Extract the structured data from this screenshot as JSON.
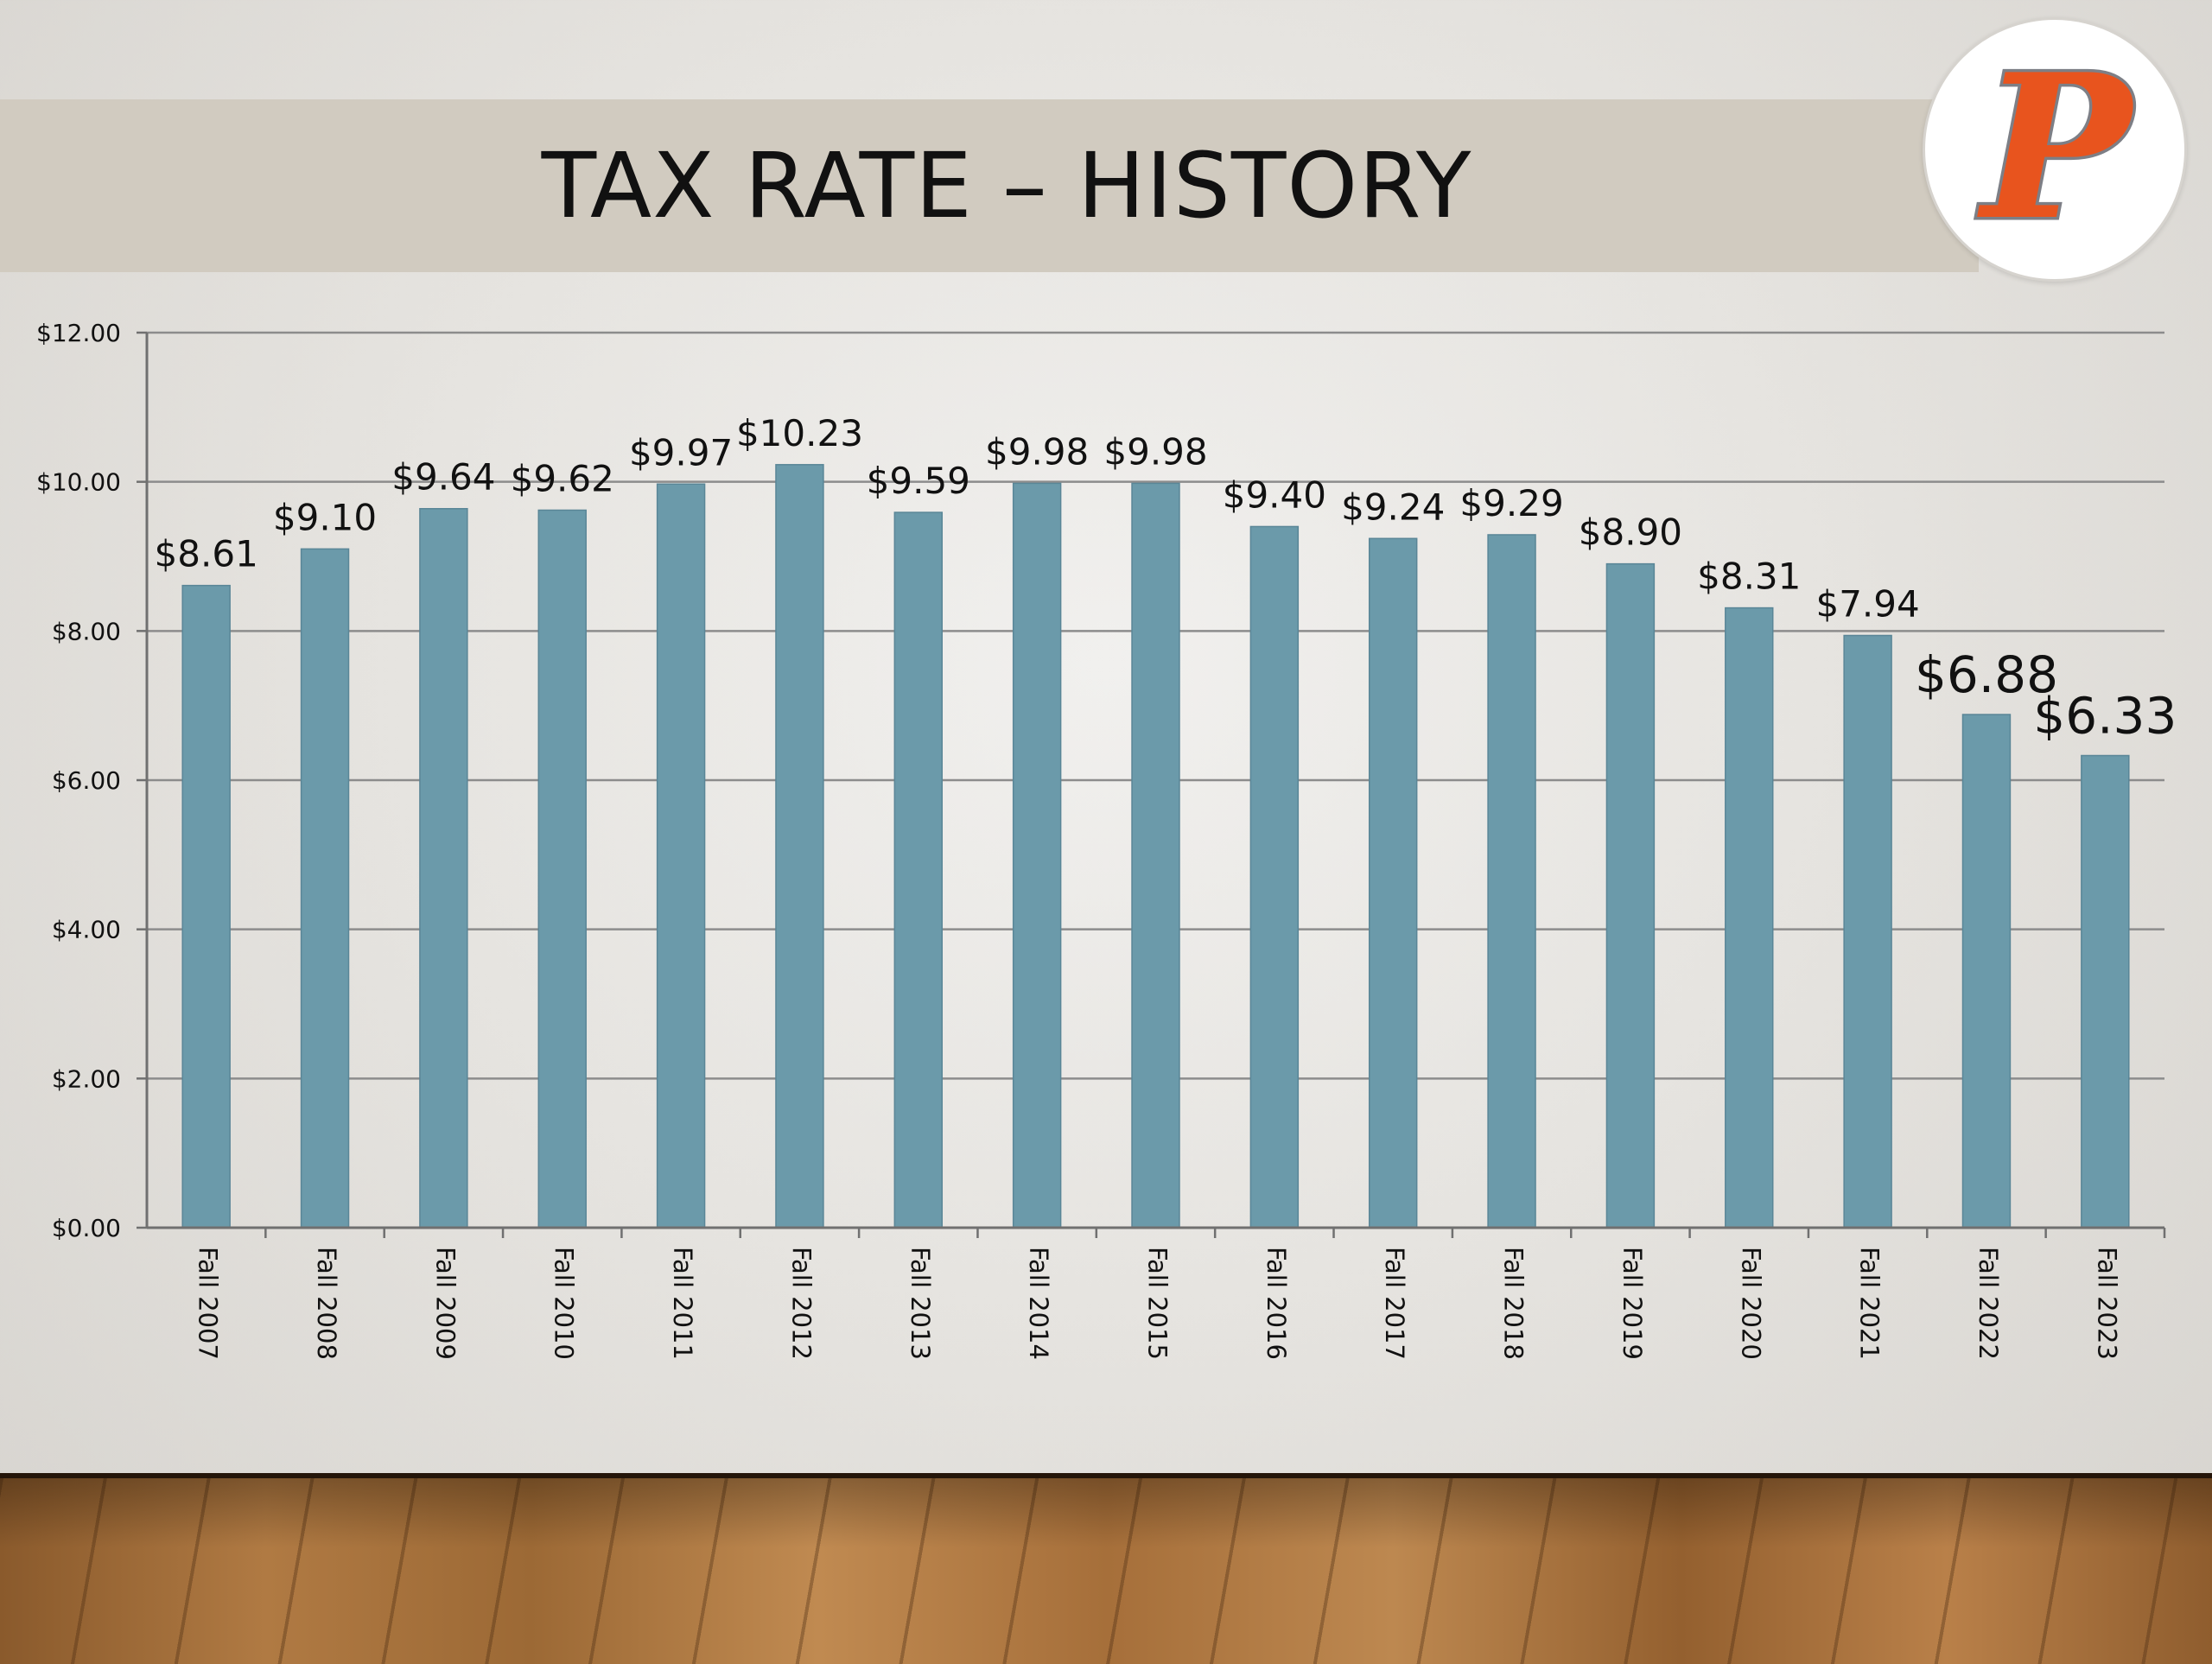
{
  "slide": {
    "title": "TAX RATE – HISTORY"
  },
  "logo": {
    "letter": "P",
    "colors": {
      "fill": "#e8541e",
      "outline": "#7d7f86"
    }
  },
  "colors": {
    "bar": "#6b9aaa",
    "gridline": "#8c8c8c",
    "axis": "#707070",
    "text": "#111111"
  },
  "chart_data": {
    "type": "bar",
    "categories": [
      "Fall 2007",
      "Fall 2008",
      "Fall 2009",
      "Fall 2010",
      "Fall 2011",
      "Fall 2012",
      "Fall 2013",
      "Fall 2014",
      "Fall 2015",
      "Fall 2016",
      "Fall 2017",
      "Fall 2018",
      "Fall 2019",
      "Fall 2020",
      "Fall 2021",
      "Fall 2022",
      "Fall 2023"
    ],
    "values": [
      8.61,
      9.1,
      9.64,
      9.62,
      9.97,
      10.23,
      9.59,
      9.98,
      9.98,
      9.4,
      9.24,
      9.29,
      8.9,
      8.31,
      7.94,
      6.88,
      6.33
    ],
    "data_labels": [
      "$8.61",
      "$9.10",
      "$9.64",
      "$9.62",
      "$9.97",
      "$10.23",
      "$9.59",
      "$9.98",
      "$9.98",
      "$9.40",
      "$9.24",
      "$9.29",
      "$8.90",
      "$8.31",
      "$7.94",
      "$6.88",
      "$6.33"
    ],
    "yticks": [
      "$0.00",
      "$2.00",
      "$4.00",
      "$6.00",
      "$8.00",
      "$10.00",
      "$12.00"
    ],
    "ylim": [
      0,
      12
    ],
    "ytick_step": 2,
    "grid": true,
    "legend": "none",
    "title": "TAX RATE – HISTORY",
    "xlabel": "",
    "ylabel": ""
  }
}
